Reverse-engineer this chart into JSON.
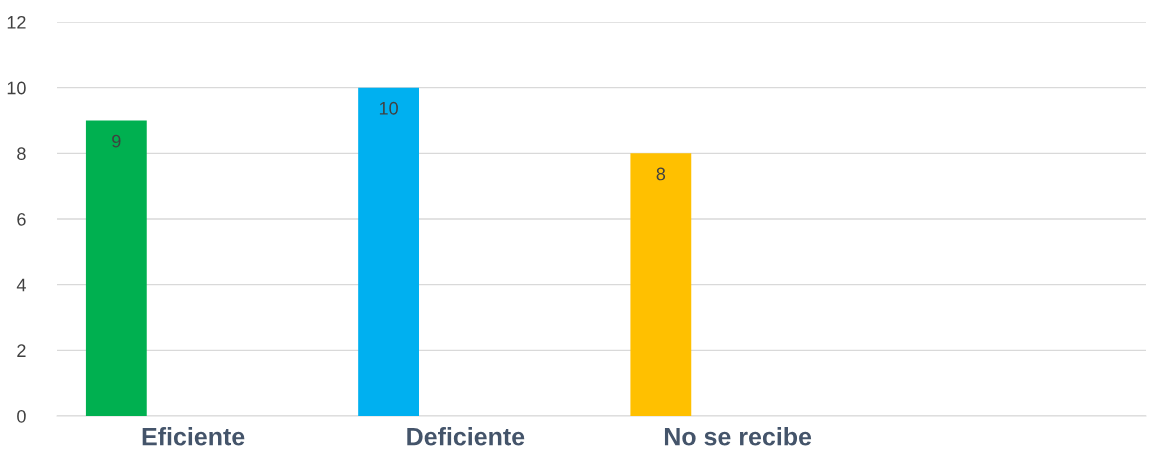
{
  "chart_data": {
    "type": "bar",
    "categories": [
      "Eficiente",
      "Deficiente",
      "No se recibe",
      null
    ],
    "values": [
      9,
      10,
      8,
      null
    ],
    "colors": [
      "#00b050",
      "#00b0f0",
      "#ffc000",
      "#a5a5a5"
    ],
    "ylim": [
      0,
      12
    ],
    "yticks": [
      0,
      2,
      4,
      6,
      8,
      10,
      12
    ],
    "grid": "y",
    "data_labels": true
  }
}
